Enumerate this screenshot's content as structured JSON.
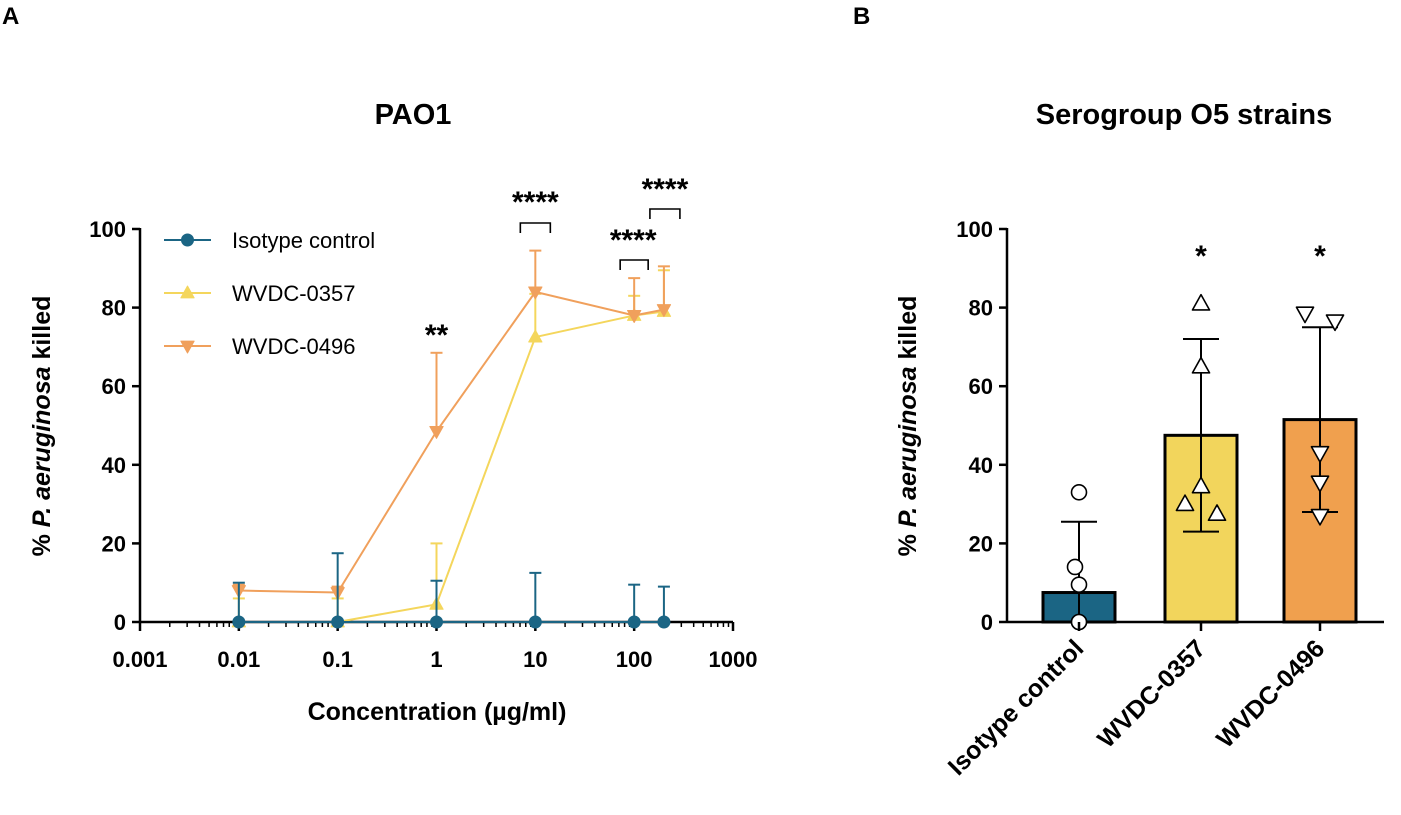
{
  "panels": {
    "a": "A",
    "b": "B"
  },
  "chart_data": [
    {
      "type": "line",
      "title": "PAO1",
      "xlabel": "Concentration (µg/ml)",
      "ylabel_prefix": "% ",
      "ylabel_italic": "P. aeruginosa",
      "ylabel_suffix": " killed",
      "xscale": "log",
      "xlim": [
        0.001,
        1000
      ],
      "ylim": [
        0,
        100
      ],
      "x_ticks": [
        "0.001",
        "0.01",
        "0.1",
        "1",
        "10",
        "100",
        "1000"
      ],
      "y_ticks": [
        "0",
        "20",
        "40",
        "60",
        "80",
        "100"
      ],
      "legend_position": "top-left",
      "series": [
        {
          "name": "Isotype control",
          "color": "#1b6584",
          "marker": "circle",
          "x": [
            0.01,
            0.1,
            1,
            10,
            100,
            200
          ],
          "y": [
            0,
            0,
            0,
            0,
            0,
            0
          ],
          "err": [
            10,
            17.5,
            10.5,
            12.5,
            9.5,
            9
          ]
        },
        {
          "name": "WVDC-0357",
          "color": "#f4d65c",
          "marker": "triangle-up",
          "x": [
            0.01,
            0.1,
            1,
            10,
            100,
            200
          ],
          "y": [
            0,
            0,
            4.5,
            72.5,
            78,
            79
          ],
          "err": [
            6,
            6,
            15.5,
            11,
            5,
            10.5
          ]
        },
        {
          "name": "WVDC-0496",
          "color": "#f0a05c",
          "marker": "triangle-down",
          "x": [
            0.01,
            0.1,
            1,
            10,
            100,
            200
          ],
          "y": [
            8,
            7.5,
            48.5,
            84,
            78,
            79.5
          ],
          "err": [
            1.5,
            1.5,
            20,
            10.5,
            9.5,
            11
          ]
        }
      ],
      "annotations": [
        {
          "text": "**",
          "x": 1
        },
        {
          "text": "****",
          "x": 10
        },
        {
          "text": "****",
          "x": 100
        },
        {
          "text": "****",
          "x": 200
        }
      ]
    },
    {
      "type": "bar",
      "title": "Serogroup O5 strains",
      "ylabel_prefix": "% ",
      "ylabel_italic": "P. aeruginosa",
      "ylabel_suffix": " killed",
      "ylim": [
        0,
        100
      ],
      "y_ticks": [
        "0",
        "20",
        "40",
        "60",
        "80",
        "100"
      ],
      "categories": [
        "Isotype control",
        "WVDC-0357",
        "WVDC-0496"
      ],
      "values": [
        7.5,
        47.5,
        51.5
      ],
      "sd": [
        18,
        24.5,
        23.5
      ],
      "colors": [
        "#1b6584",
        "#f2d55c",
        "#f0a04e"
      ],
      "markers": [
        "circle",
        "triangle-up",
        "triangle-down"
      ],
      "points": [
        [
          33,
          14,
          9.5,
          0,
          0
        ],
        [
          81,
          65,
          34.5,
          30,
          27.5
        ],
        [
          78.5,
          76.5,
          43,
          35.5,
          27
        ]
      ],
      "significance": [
        "",
        "*",
        "*"
      ]
    }
  ]
}
